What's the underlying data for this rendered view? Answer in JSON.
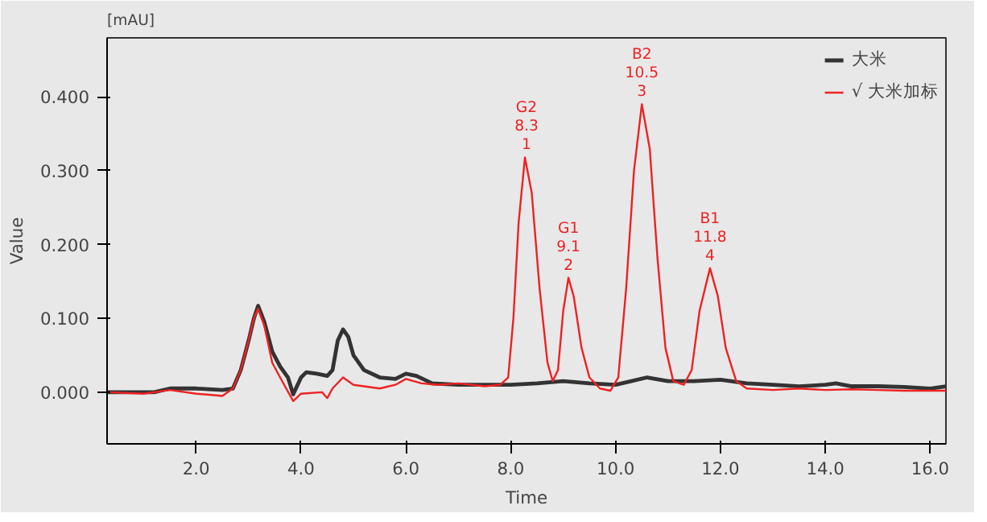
{
  "chart_data": {
    "type": "line",
    "xlabel": "Time",
    "ylabel": "Value",
    "xlim": [
      0.3,
      16.3
    ],
    "ylim": [
      -0.07,
      0.48
    ],
    "xticks": [
      {
        "value": 2,
        "label": "2.0"
      },
      {
        "value": 4,
        "label": "4.0"
      },
      {
        "value": 6,
        "label": "6.0"
      },
      {
        "value": 8,
        "label": "8.0"
      },
      {
        "value": 10,
        "label": "10.0"
      },
      {
        "value": 12,
        "label": "12.0"
      },
      {
        "value": 14,
        "label": "14.0"
      },
      {
        "value": 16,
        "label": "16.0"
      }
    ],
    "yticks": [
      {
        "value": 0,
        "label": "0.000"
      },
      {
        "value": 0.1,
        "label": "0.100"
      },
      {
        "value": 0.2,
        "label": "0.200"
      },
      {
        "value": 0.3,
        "label": "0.300"
      },
      {
        "value": 0.4,
        "label": "0.400"
      }
    ],
    "grid": false,
    "legend": "top right",
    "marker": "none",
    "line_style": "solid",
    "series": [
      {
        "name": "大米",
        "color": "#333333",
        "x": [
          0.3,
          0.8,
          1.2,
          1.5,
          2.0,
          2.5,
          2.7,
          2.85,
          3.0,
          3.1,
          3.18,
          3.3,
          3.45,
          3.6,
          3.75,
          3.85,
          4.0,
          4.1,
          4.3,
          4.5,
          4.6,
          4.7,
          4.8,
          4.9,
          5.0,
          5.2,
          5.5,
          5.8,
          6.0,
          6.2,
          6.5,
          7.0,
          7.5,
          8.0,
          8.5,
          9.0,
          9.5,
          10.0,
          10.3,
          10.6,
          11.0,
          11.5,
          12.0,
          12.5,
          13.0,
          13.5,
          14.0,
          14.2,
          14.5,
          15.0,
          15.5,
          16.0,
          16.3
        ],
        "values": [
          0.0,
          0.0,
          0.0,
          0.005,
          0.005,
          0.003,
          0.005,
          0.03,
          0.07,
          0.1,
          0.117,
          0.095,
          0.055,
          0.035,
          0.02,
          -0.003,
          0.02,
          0.027,
          0.025,
          0.022,
          0.03,
          0.07,
          0.085,
          0.075,
          0.05,
          0.03,
          0.02,
          0.018,
          0.025,
          0.022,
          0.012,
          0.01,
          0.01,
          0.01,
          0.012,
          0.015,
          0.012,
          0.01,
          0.015,
          0.02,
          0.015,
          0.015,
          0.017,
          0.012,
          0.01,
          0.008,
          0.01,
          0.012,
          0.008,
          0.008,
          0.007,
          0.005,
          0.008
        ]
      },
      {
        "name": "√ 大米加标",
        "color": "#ee2222",
        "x": [
          0.3,
          1.0,
          1.5,
          2.0,
          2.5,
          2.7,
          2.85,
          3.0,
          3.1,
          3.18,
          3.3,
          3.45,
          3.6,
          3.85,
          4.0,
          4.4,
          4.5,
          4.6,
          4.8,
          5.0,
          5.5,
          5.8,
          6.0,
          6.3,
          6.6,
          7.0,
          7.5,
          7.8,
          7.95,
          8.05,
          8.15,
          8.27,
          8.4,
          8.55,
          8.7,
          8.8,
          8.9,
          9.0,
          9.1,
          9.2,
          9.35,
          9.5,
          9.7,
          9.9,
          10.05,
          10.2,
          10.35,
          10.5,
          10.65,
          10.8,
          10.95,
          11.1,
          11.3,
          11.45,
          11.6,
          11.8,
          11.95,
          12.1,
          12.3,
          12.5,
          13.0,
          13.5,
          14.0,
          14.5,
          15.0,
          15.5,
          16.0,
          16.3
        ],
        "values": [
          0.0,
          -0.002,
          0.003,
          -0.002,
          -0.005,
          0.005,
          0.03,
          0.07,
          0.1,
          0.113,
          0.09,
          0.04,
          0.02,
          -0.012,
          -0.002,
          0.0,
          -0.008,
          0.005,
          0.02,
          0.01,
          0.005,
          0.01,
          0.018,
          0.012,
          0.01,
          0.012,
          0.008,
          0.01,
          0.02,
          0.1,
          0.23,
          0.318,
          0.27,
          0.14,
          0.04,
          0.015,
          0.03,
          0.11,
          0.155,
          0.13,
          0.06,
          0.02,
          0.005,
          0.002,
          0.02,
          0.14,
          0.3,
          0.39,
          0.33,
          0.18,
          0.06,
          0.015,
          0.01,
          0.03,
          0.11,
          0.168,
          0.13,
          0.06,
          0.015,
          0.005,
          0.003,
          0.005,
          0.003,
          0.004,
          0.003,
          0.002,
          0.002,
          0.002
        ]
      }
    ],
    "annotations": [
      "[mAU]",
      {
        "text": "G2\n8.3\n1",
        "x": 8.3,
        "y": 0.318
      },
      {
        "text": "G1\n9.1\n2",
        "x": 9.1,
        "y": 0.155
      },
      {
        "text": "B2\n10.5\n3",
        "x": 10.5,
        "y": 0.39
      },
      {
        "text": "B1\n11.8\n4",
        "x": 11.8,
        "y": 0.168
      }
    ]
  }
}
